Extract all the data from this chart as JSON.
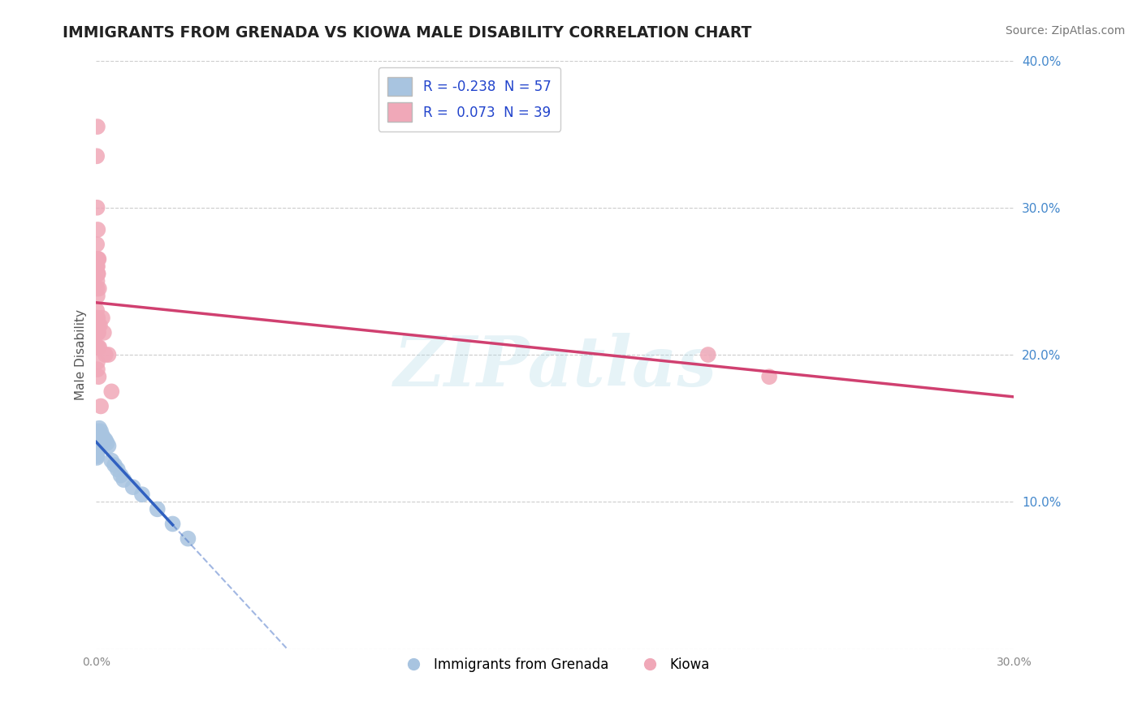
{
  "title": "IMMIGRANTS FROM GRENADA VS KIOWA MALE DISABILITY CORRELATION CHART",
  "source": "Source: ZipAtlas.com",
  "xlabel": "",
  "ylabel": "Male Disability",
  "xlim": [
    0.0,
    0.3
  ],
  "ylim": [
    0.0,
    0.4
  ],
  "xticks": [
    0.0,
    0.05,
    0.1,
    0.15,
    0.2,
    0.25,
    0.3
  ],
  "yticks": [
    0.0,
    0.1,
    0.2,
    0.3,
    0.4
  ],
  "legend_labels": [
    "Immigrants from Grenada",
    "Kiowa"
  ],
  "blue_R": -0.238,
  "blue_N": 57,
  "pink_R": 0.073,
  "pink_N": 39,
  "blue_color": "#a8c4e0",
  "pink_color": "#f0a8b8",
  "blue_line_color": "#3060c0",
  "pink_line_color": "#d04070",
  "watermark": "ZIPatlas",
  "background_color": "#ffffff",
  "grid_color": "#cccccc",
  "blue_scatter_x": [
    0.0002,
    0.0003,
    0.0004,
    0.0002,
    0.0003,
    0.0001,
    0.0004,
    0.0003,
    0.0002,
    0.0001,
    0.0003,
    0.0002,
    0.0004,
    0.0001,
    0.0003,
    0.0002,
    0.0001,
    0.0004,
    0.0003,
    0.0002,
    0.0003,
    0.0002,
    0.0001,
    0.0004,
    0.0003,
    0.0002,
    0.0001,
    0.0003,
    0.0002,
    0.0001,
    0.0004,
    0.0003,
    0.0002,
    0.0001,
    0.0005,
    0.0003,
    0.0002,
    0.0004,
    0.0001,
    0.0003,
    0.001,
    0.0015,
    0.002,
    0.0025,
    0.003,
    0.0035,
    0.004,
    0.005,
    0.006,
    0.007,
    0.008,
    0.009,
    0.012,
    0.015,
    0.02,
    0.025,
    0.03
  ],
  "blue_scatter_y": [
    0.135,
    0.14,
    0.145,
    0.13,
    0.138,
    0.142,
    0.137,
    0.133,
    0.141,
    0.136,
    0.148,
    0.132,
    0.143,
    0.139,
    0.145,
    0.134,
    0.14,
    0.137,
    0.143,
    0.131,
    0.146,
    0.138,
    0.142,
    0.136,
    0.141,
    0.135,
    0.143,
    0.138,
    0.146,
    0.133,
    0.14,
    0.145,
    0.136,
    0.141,
    0.138,
    0.144,
    0.133,
    0.142,
    0.137,
    0.14,
    0.15,
    0.148,
    0.145,
    0.143,
    0.142,
    0.14,
    0.138,
    0.128,
    0.125,
    0.122,
    0.118,
    0.115,
    0.11,
    0.105,
    0.095,
    0.085,
    0.075
  ],
  "pink_scatter_x": [
    0.0002,
    0.0003,
    0.0004,
    0.0005,
    0.0003,
    0.0006,
    0.0004,
    0.0003,
    0.0002,
    0.0005,
    0.0004,
    0.0006,
    0.0003,
    0.0002,
    0.0004,
    0.0007,
    0.0005,
    0.0003,
    0.0006,
    0.0008,
    0.0004,
    0.0003,
    0.0009,
    0.0005,
    0.0003,
    0.0004,
    0.0007,
    0.0005,
    0.0008,
    0.001,
    0.0012,
    0.0015,
    0.002,
    0.0025,
    0.003,
    0.004,
    0.005,
    0.2,
    0.22
  ],
  "pink_scatter_y": [
    0.275,
    0.25,
    0.26,
    0.285,
    0.3,
    0.22,
    0.24,
    0.215,
    0.23,
    0.255,
    0.19,
    0.265,
    0.245,
    0.335,
    0.265,
    0.215,
    0.225,
    0.205,
    0.255,
    0.265,
    0.355,
    0.26,
    0.245,
    0.215,
    0.225,
    0.195,
    0.205,
    0.215,
    0.185,
    0.205,
    0.22,
    0.165,
    0.225,
    0.215,
    0.2,
    0.2,
    0.175,
    0.2,
    0.185
  ],
  "blue_trend_x0": 0.0,
  "blue_trend_x_solid_end": 0.025,
  "blue_trend_x1": 0.3,
  "pink_trend_x0": 0.0,
  "pink_trend_x1": 0.3
}
